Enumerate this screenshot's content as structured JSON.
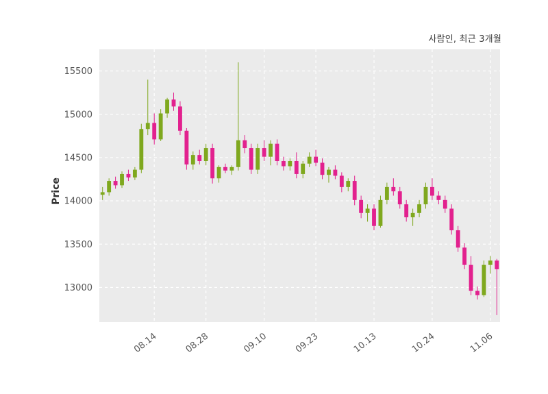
{
  "chart_data": {
    "type": "candlestick",
    "title": "사람인, 최근 3개월",
    "ylabel": "Price",
    "ylim": [
      12600,
      15750
    ],
    "yticks": [
      13000,
      13500,
      14000,
      14500,
      15000,
      15500
    ],
    "xticks": [
      {
        "i": 8,
        "label": "08.14"
      },
      {
        "i": 16,
        "label": "08.28"
      },
      {
        "i": 25,
        "label": "09.10"
      },
      {
        "i": 33,
        "label": "09.23"
      },
      {
        "i": 42,
        "label": "10.13"
      },
      {
        "i": 51,
        "label": "10.24"
      },
      {
        "i": 60,
        "label": "11.06"
      }
    ],
    "colors": {
      "up": "#7fa81e",
      "down": "#e2218e",
      "plot_bg": "#ebebeb",
      "grid": "#ffffff",
      "tick_text": "#555555"
    },
    "candles": [
      [
        14070,
        14160,
        14010,
        14100
      ],
      [
        14100,
        14260,
        14060,
        14230
      ],
      [
        14230,
        14280,
        14140,
        14180
      ],
      [
        14180,
        14340,
        14150,
        14310
      ],
      [
        14310,
        14360,
        14230,
        14270
      ],
      [
        14270,
        14390,
        14240,
        14360
      ],
      [
        14360,
        14890,
        14320,
        14830
      ],
      [
        14830,
        15400,
        14760,
        14900
      ],
      [
        14900,
        15010,
        14650,
        14710
      ],
      [
        14710,
        15060,
        14690,
        15010
      ],
      [
        15010,
        15190,
        14960,
        15170
      ],
      [
        15170,
        15250,
        15040,
        15090
      ],
      [
        15090,
        15150,
        14760,
        14810
      ],
      [
        14810,
        14840,
        14360,
        14420
      ],
      [
        14420,
        14570,
        14360,
        14530
      ],
      [
        14530,
        14590,
        14420,
        14460
      ],
      [
        14460,
        14660,
        14410,
        14610
      ],
      [
        14610,
        14660,
        14200,
        14260
      ],
      [
        14260,
        14410,
        14210,
        14390
      ],
      [
        14390,
        14430,
        14320,
        14350
      ],
      [
        14350,
        14410,
        14300,
        14390
      ],
      [
        14390,
        15600,
        14350,
        14700
      ],
      [
        14700,
        14760,
        14550,
        14610
      ],
      [
        14610,
        14660,
        14310,
        14360
      ],
      [
        14360,
        14660,
        14310,
        14610
      ],
      [
        14610,
        14700,
        14460,
        14510
      ],
      [
        14510,
        14700,
        14410,
        14660
      ],
      [
        14660,
        14710,
        14410,
        14460
      ],
      [
        14460,
        14510,
        14350,
        14400
      ],
      [
        14400,
        14490,
        14350,
        14460
      ],
      [
        14460,
        14560,
        14260,
        14310
      ],
      [
        14310,
        14460,
        14260,
        14430
      ],
      [
        14430,
        14560,
        14390,
        14510
      ],
      [
        14510,
        14590,
        14400,
        14440
      ],
      [
        14440,
        14490,
        14250,
        14300
      ],
      [
        14300,
        14390,
        14210,
        14360
      ],
      [
        14360,
        14410,
        14250,
        14290
      ],
      [
        14290,
        14330,
        14100,
        14160
      ],
      [
        14160,
        14260,
        14110,
        14230
      ],
      [
        14230,
        14290,
        13950,
        14010
      ],
      [
        14010,
        14060,
        13800,
        13860
      ],
      [
        13860,
        13960,
        13760,
        13910
      ],
      [
        13910,
        13960,
        13660,
        13710
      ],
      [
        13710,
        14060,
        13690,
        14010
      ],
      [
        14010,
        14210,
        13960,
        14160
      ],
      [
        14160,
        14260,
        14060,
        14110
      ],
      [
        14110,
        14160,
        13910,
        13960
      ],
      [
        13960,
        14010,
        13760,
        13810
      ],
      [
        13810,
        13910,
        13710,
        13860
      ],
      [
        13860,
        14010,
        13810,
        13960
      ],
      [
        13960,
        14210,
        13910,
        14160
      ],
      [
        14160,
        14260,
        14010,
        14060
      ],
      [
        14060,
        14110,
        13960,
        14010
      ],
      [
        14010,
        14060,
        13860,
        13910
      ],
      [
        13910,
        13960,
        13610,
        13660
      ],
      [
        13660,
        13710,
        13410,
        13460
      ],
      [
        13460,
        13510,
        13210,
        13260
      ],
      [
        13260,
        13360,
        12910,
        12960
      ],
      [
        12960,
        13010,
        12860,
        12910
      ],
      [
        12910,
        13310,
        12890,
        13260
      ],
      [
        13260,
        13360,
        13160,
        13310
      ],
      [
        13310,
        13330,
        12680,
        13210
      ]
    ]
  }
}
